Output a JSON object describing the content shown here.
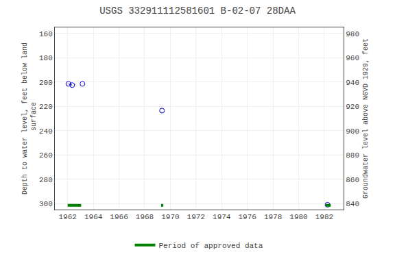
{
  "chart_data": {
    "type": "scatter",
    "title": "USGS 332911112581601 B-02-07 28DAA",
    "ylabel": "Depth to water level, feet below land\n surface",
    "y2label": "Groundwater level above NGVD 1929, feet",
    "xlim": [
      1961.0,
      1983.5
    ],
    "xticks": [
      1962,
      1964,
      1966,
      1968,
      1970,
      1972,
      1974,
      1976,
      1978,
      1980,
      1982
    ],
    "ylim": [
      305,
      155
    ],
    "yticks": [
      160,
      180,
      200,
      220,
      240,
      260,
      280,
      300
    ],
    "y2lim": [
      835,
      985
    ],
    "y2ticks": [
      840,
      860,
      880,
      900,
      920,
      940,
      960,
      980
    ],
    "grid": true,
    "legend": "bottom",
    "series": [
      {
        "type": "line",
        "line_style": "dashed",
        "color": "#0000cc",
        "x": [
          1962.05,
          1962.35
        ],
        "values": [
          201.5,
          202.5
        ]
      },
      {
        "type": "scatter",
        "marker": "circle-open",
        "color": "#0000cc",
        "x": [
          1962.05,
          1962.35,
          1963.15,
          1969.35,
          1982.25
        ],
        "values": [
          201.5,
          202.5,
          201.5,
          223.5,
          301.0
        ]
      },
      {
        "type": "segments",
        "name": "Period of approved data",
        "color": "#008000",
        "x_start": [
          1962.0,
          1969.28,
          1982.1
        ],
        "x_end": [
          1963.05,
          1969.45,
          1982.5
        ],
        "values": [
          301.5,
          301.5,
          301.5
        ]
      }
    ]
  }
}
